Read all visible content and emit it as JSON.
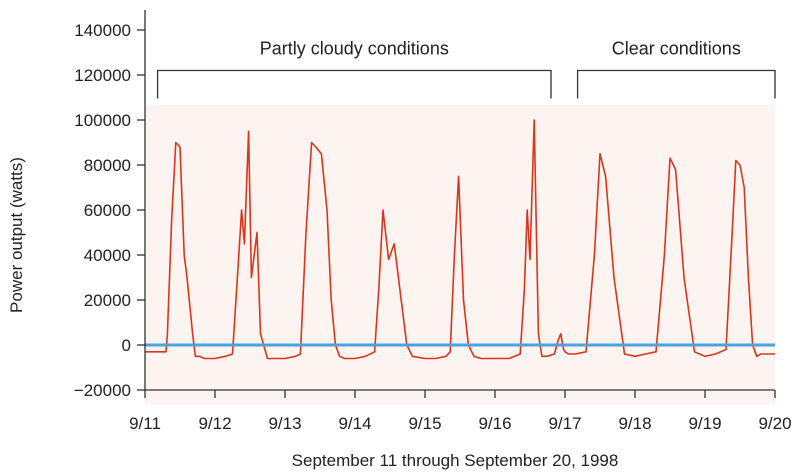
{
  "chart_data": {
    "type": "line",
    "title": "",
    "xlabel": "September 11 through September 20, 1998",
    "ylabel": "Power output (watts)",
    "ylim": [
      -20000,
      140000
    ],
    "xlim": [
      0,
      9
    ],
    "y_ticks": [
      140000,
      120000,
      100000,
      80000,
      60000,
      40000,
      20000,
      0,
      -20000
    ],
    "y_tick_labels": [
      "140000",
      "120000",
      "100000",
      "80000",
      "60000",
      "40000",
      "20000",
      "0",
      "−20000"
    ],
    "x_ticks": [
      0,
      1,
      2,
      3,
      4,
      5,
      6,
      7,
      8,
      9
    ],
    "x_tick_labels": [
      "9/11",
      "9/12",
      "9/13",
      "9/14",
      "9/15",
      "9/16",
      "9/17",
      "9/18",
      "9/19",
      "9/20"
    ],
    "series": [
      {
        "color": "#d9361c",
        "x": [
          0.0,
          0.3,
          0.32,
          0.38,
          0.44,
          0.5,
          0.56,
          0.6,
          0.68,
          0.72,
          0.78,
          0.85,
          1.0,
          1.15,
          1.25,
          1.32,
          1.38,
          1.42,
          1.48,
          1.52,
          1.6,
          1.65,
          1.75,
          1.85,
          2.0,
          2.15,
          2.22,
          2.3,
          2.38,
          2.44,
          2.52,
          2.6,
          2.66,
          2.72,
          2.78,
          2.85,
          3.0,
          3.15,
          3.28,
          3.34,
          3.4,
          3.48,
          3.56,
          3.66,
          3.74,
          3.82,
          4.0,
          4.15,
          4.3,
          4.36,
          4.42,
          4.48,
          4.55,
          4.62,
          4.7,
          4.8,
          5.0,
          5.2,
          5.36,
          5.42,
          5.46,
          5.5,
          5.56,
          5.62,
          5.67,
          5.75,
          5.85,
          5.9,
          5.94,
          5.98,
          6.0,
          6.05,
          6.15,
          6.3,
          6.42,
          6.5,
          6.58,
          6.7,
          6.85,
          7.0,
          7.15,
          7.3,
          7.42,
          7.5,
          7.58,
          7.7,
          7.85,
          8.0,
          8.15,
          8.3,
          8.38,
          8.44,
          8.5,
          8.56,
          8.62,
          8.68,
          8.74,
          8.8,
          9.0
        ],
        "values": [
          -3000,
          -3000,
          5000,
          55000,
          90000,
          88000,
          40000,
          30000,
          5000,
          -5000,
          -5000,
          -6000,
          -6000,
          -5000,
          -4000,
          30000,
          60000,
          45000,
          95000,
          30000,
          50000,
          5000,
          -6000,
          -6000,
          -6000,
          -5000,
          -4000,
          50000,
          90000,
          88000,
          85000,
          60000,
          20000,
          0,
          -5000,
          -6000,
          -6000,
          -5000,
          -3000,
          25000,
          60000,
          38000,
          45000,
          20000,
          0,
          -5000,
          -6000,
          -6000,
          -5000,
          -3000,
          40000,
          75000,
          20000,
          0,
          -5000,
          -6000,
          -6000,
          -6000,
          -4000,
          25000,
          60000,
          38000,
          100000,
          5000,
          -5000,
          -5000,
          -4000,
          2000,
          5000,
          -2000,
          -3000,
          -4000,
          -4000,
          -3000,
          40000,
          85000,
          75000,
          30000,
          -4000,
          -5000,
          -4000,
          -3000,
          40000,
          83000,
          78000,
          30000,
          -3000,
          -5000,
          -4000,
          -2000,
          45000,
          82000,
          80000,
          70000,
          30000,
          0,
          -5000,
          -4000,
          -4000
        ]
      },
      {
        "color": "#4aa3d9",
        "x": [
          0,
          9
        ],
        "values": [
          0,
          0
        ]
      }
    ],
    "annotations": [
      {
        "text": "Partly cloudy conditions",
        "x_start": 0.18,
        "x_end": 5.8,
        "y": 122000
      },
      {
        "text": "Clear conditions",
        "x_start": 6.18,
        "x_end": 9.0,
        "y": 122000
      }
    ],
    "grid": false,
    "legend": "none"
  }
}
